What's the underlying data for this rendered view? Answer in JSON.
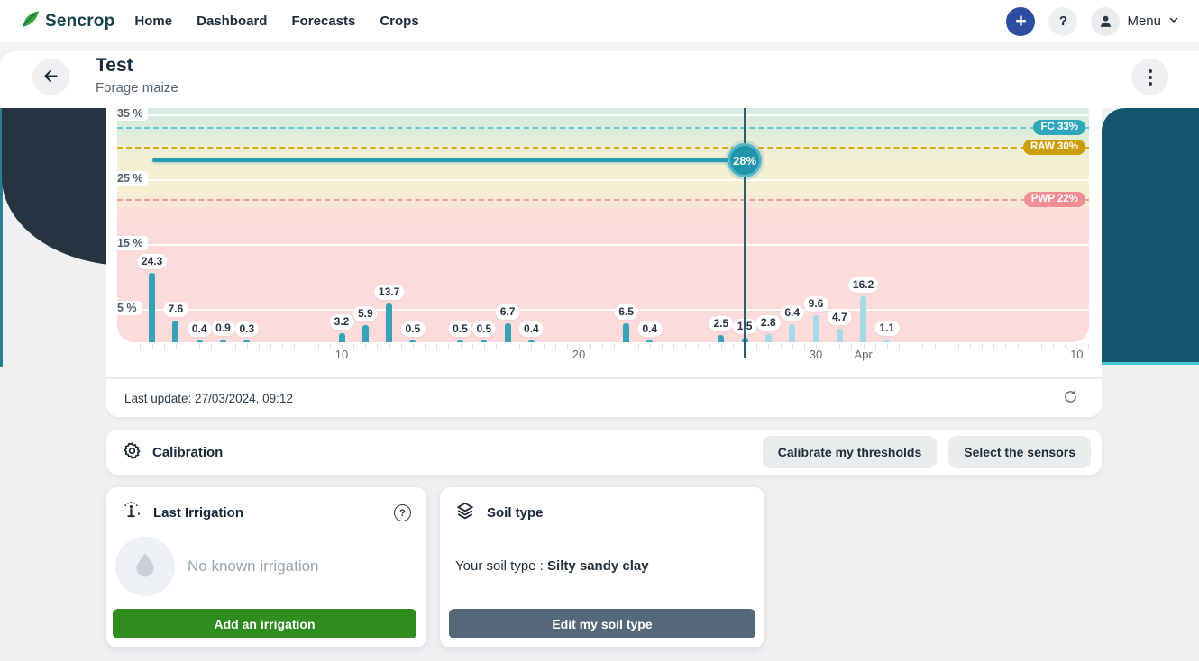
{
  "navbar": {
    "brand": "Sencrop",
    "items": [
      "Home",
      "Dashboard",
      "Forecasts",
      "Crops"
    ],
    "plus_label": "+",
    "help_label": "?",
    "menu_label": "Menu"
  },
  "header": {
    "title": "Test",
    "subtitle": "Forage maize"
  },
  "chart_data": {
    "type": "mixed",
    "y_unit": "%",
    "ylim": [
      0,
      36
    ],
    "grid": true,
    "y_ticks": [
      {
        "pct": 35,
        "label": "35 %"
      },
      {
        "pct": 25,
        "label": "25 %"
      },
      {
        "pct": 15,
        "label": "15 %"
      },
      {
        "pct": 5,
        "label": "5 %"
      }
    ],
    "x_ticks": [
      {
        "day": 10,
        "label": "10"
      },
      {
        "day": 20,
        "label": "20"
      },
      {
        "day": 30,
        "label": "30"
      },
      {
        "day": 32,
        "label": "Apr"
      },
      {
        "day": 41,
        "label": "10"
      }
    ],
    "thresholds": [
      {
        "name": "fc",
        "label": "FC 33%",
        "pct": 33,
        "line_color": "#62c8d8",
        "pill_color": "#2fa6ba"
      },
      {
        "name": "raw",
        "label": "RAW 30%",
        "pct": 30,
        "line_color": "#d6ab14",
        "pill_color": "#c99e06"
      },
      {
        "name": "pwp",
        "label": "PWP 22%",
        "pct": 22,
        "line_color": "#eb9d9d",
        "pill_color": "#f08e93"
      }
    ],
    "moisture_line": {
      "pct": 28,
      "badge_label": "28%",
      "from_day": 2,
      "to_day": 27
    },
    "cursor_day": 27,
    "bars": [
      {
        "day": 2,
        "v": 24.3,
        "future": false
      },
      {
        "day": 3,
        "v": 7.6,
        "future": false
      },
      {
        "day": 4,
        "v": 0.4,
        "future": false
      },
      {
        "day": 5,
        "v": 0.9,
        "future": false
      },
      {
        "day": 6,
        "v": 0.3,
        "future": false
      },
      {
        "day": 10,
        "v": 3.2,
        "future": false
      },
      {
        "day": 11,
        "v": 5.9,
        "future": false
      },
      {
        "day": 12,
        "v": 13.7,
        "future": false
      },
      {
        "day": 13,
        "v": 0.5,
        "future": false
      },
      {
        "day": 15,
        "v": 0.5,
        "future": false
      },
      {
        "day": 16,
        "v": 0.5,
        "future": false
      },
      {
        "day": 17,
        "v": 6.7,
        "future": false
      },
      {
        "day": 18,
        "v": 0.4,
        "future": false
      },
      {
        "day": 22,
        "v": 6.5,
        "future": false
      },
      {
        "day": 23,
        "v": 0.4,
        "future": false
      },
      {
        "day": 26,
        "v": 2.5,
        "future": false
      },
      {
        "day": 27,
        "v": 1.5,
        "future": false
      },
      {
        "day": 28,
        "v": 2.8,
        "future": true
      },
      {
        "day": 29,
        "v": 6.4,
        "future": true
      },
      {
        "day": 30,
        "v": 9.6,
        "future": true
      },
      {
        "day": 31,
        "v": 4.7,
        "future": true
      },
      {
        "day": 32,
        "v": 16.2,
        "future": true
      },
      {
        "day": 33,
        "v": 1.1,
        "future": true
      }
    ]
  },
  "last_update": {
    "text": "Last update: 27/03/2024, 09:12"
  },
  "calibration": {
    "title": "Calibration",
    "buttons": [
      "Calibrate my thresholds",
      "Select the sensors"
    ]
  },
  "irrigation_card": {
    "title": "Last Irrigation",
    "help_label": "?",
    "empty_text": "No known irrigation",
    "button": "Add an irrigation"
  },
  "soil_card": {
    "title": "Soil type",
    "label": "Your soil type : ",
    "value": "Silty sandy clay",
    "button": "Edit my soil type"
  },
  "colors": {
    "brand_green": "#3aa33f",
    "button_green": "#2f8c1e",
    "button_slate": "#546879",
    "bar_past": "#35a2b8",
    "bar_future": "#a5daea",
    "moisture_teal": "#2095aa",
    "panel_teal": "#15566c",
    "blob_navy": "#263340",
    "fc_pill": "#2fa6ba",
    "raw_pill": "#c99e06",
    "pwp_pill": "#f08e93"
  }
}
